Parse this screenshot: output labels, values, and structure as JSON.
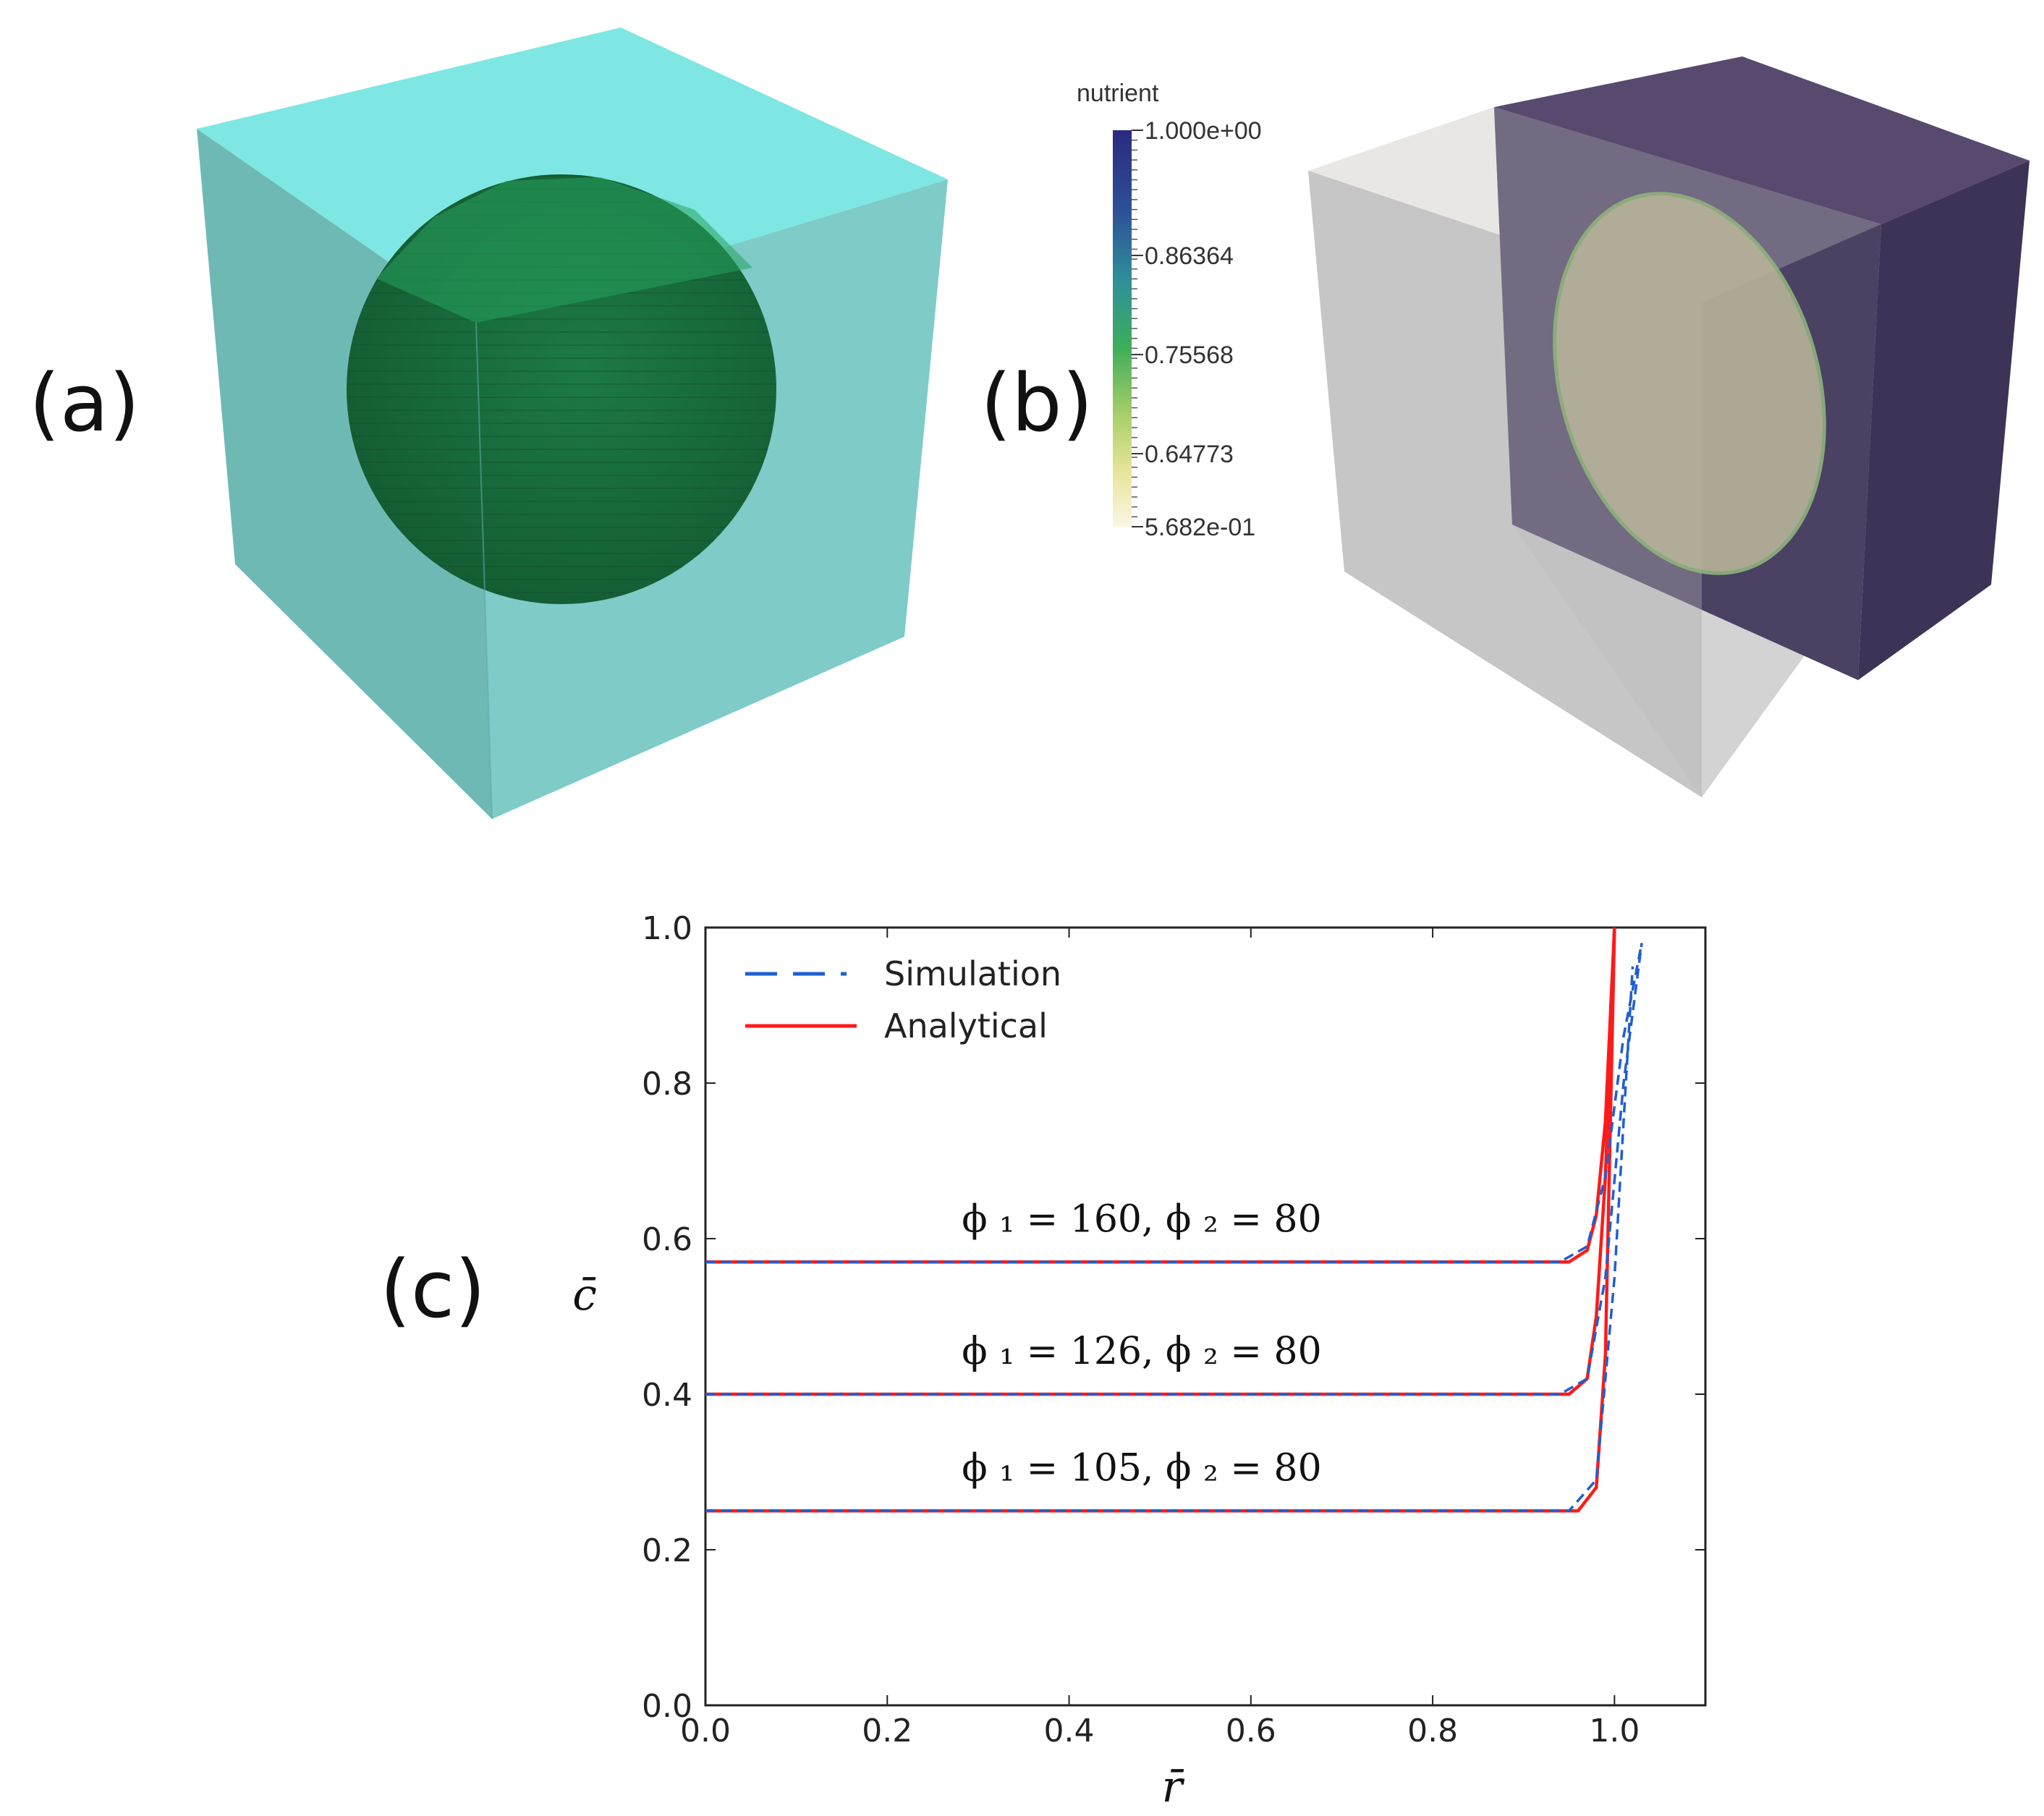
{
  "panels": {
    "a": {
      "label": "(a)"
    },
    "b": {
      "label": "(b)"
    },
    "c": {
      "label": "(c)"
    }
  },
  "colors": {
    "cube_a": "#7fd8d5",
    "sphere": "#1e7a44",
    "cube_b_light": "#d9d8d6",
    "cube_b_dark": "#4a3f66",
    "simulation": "#1f5fd0",
    "analytical": "#ff1a1a"
  },
  "colorbar": {
    "title": "nutrient",
    "ticks": [
      "1.000e+00",
      "0.86364",
      "0.75568",
      "0.64773",
      "5.682e-01"
    ],
    "min": 0.5682,
    "max": 1.0
  },
  "chart_data": {
    "type": "line",
    "xlabel": "r̄",
    "ylabel": "c̄",
    "xlim": [
      0.0,
      1.1
    ],
    "ylim": [
      0.0,
      1.0
    ],
    "xticks": [
      "0.0",
      "0.2",
      "0.4",
      "0.6",
      "0.8",
      "1.0"
    ],
    "yticks": [
      "0.0",
      "0.2",
      "0.4",
      "0.6",
      "0.8",
      "1.0"
    ],
    "legend": {
      "position": "top-left",
      "entries": [
        "Simulation",
        "Analytical"
      ]
    },
    "annotations": [
      "ϕ ₁ = 160, ϕ ₂ = 80",
      "ϕ ₁ = 126, ϕ ₂ = 80",
      "ϕ ₁ = 105, ϕ ₂ = 80"
    ],
    "series": [
      {
        "name": "Analytical",
        "style": "solid",
        "x": [
          0.0,
          0.95,
          0.97,
          0.98,
          0.99,
          1.0
        ],
        "y": [
          0.57,
          0.57,
          0.585,
          0.63,
          0.75,
          1.0
        ]
      },
      {
        "name": "Simulation",
        "style": "dashed",
        "x": [
          0.0,
          0.94,
          0.97,
          0.99,
          1.01,
          1.03
        ],
        "y": [
          0.57,
          0.57,
          0.59,
          0.68,
          0.86,
          0.98
        ]
      },
      {
        "name": "Analytical",
        "style": "solid",
        "x": [
          0.0,
          0.95,
          0.97,
          0.98,
          0.99,
          1.0
        ],
        "y": [
          0.4,
          0.4,
          0.42,
          0.5,
          0.68,
          1.0
        ]
      },
      {
        "name": "Simulation",
        "style": "dashed",
        "x": [
          0.0,
          0.94,
          0.97,
          0.99,
          1.01,
          1.03
        ],
        "y": [
          0.4,
          0.4,
          0.42,
          0.55,
          0.8,
          0.98
        ]
      },
      {
        "name": "Analytical",
        "style": "solid",
        "x": [
          0.0,
          0.96,
          0.98,
          0.99,
          1.0
        ],
        "y": [
          0.25,
          0.25,
          0.28,
          0.45,
          1.0
        ]
      },
      {
        "name": "Simulation",
        "style": "dashed",
        "x": [
          0.0,
          0.95,
          0.98,
          1.0,
          1.02
        ],
        "y": [
          0.25,
          0.25,
          0.29,
          0.55,
          0.95
        ]
      }
    ]
  }
}
